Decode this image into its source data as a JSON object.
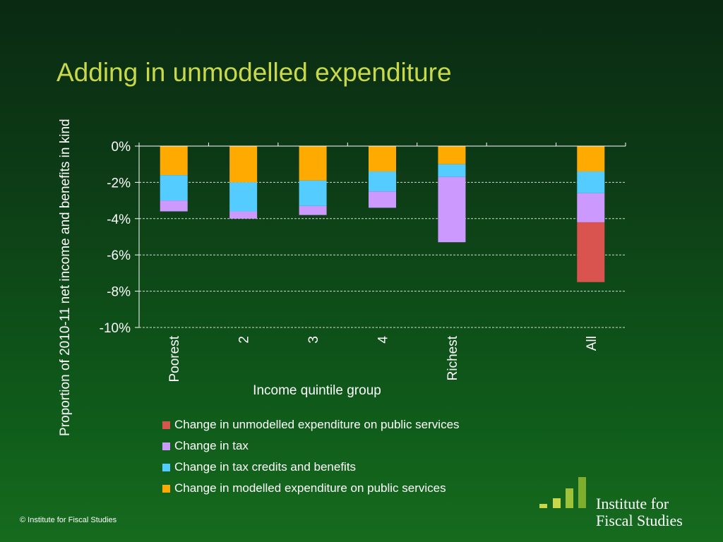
{
  "title": "Adding in unmodelled expenditure",
  "footer": "© Institute for Fiscal Studies",
  "logo": {
    "line1": "Institute for",
    "line2": "Fiscal Studies"
  },
  "colors": {
    "unmodelled": "#d9534f",
    "tax": "#cc99ff",
    "credits": "#55ccff",
    "modelled": "#ffaa00",
    "title": "#c8d84a"
  },
  "chart_data": {
    "type": "bar",
    "stacked": true,
    "xlabel": "Income quintile group",
    "ylabel": "Proportion of 2010-11 net income and benefits in kind",
    "ylim": [
      -10,
      0
    ],
    "yticks": [
      0,
      -2,
      -4,
      -6,
      -8,
      -10
    ],
    "ytick_labels": [
      "0%",
      "-2%",
      "-4%",
      "-6%",
      "-8%",
      "-10%"
    ],
    "grid": true,
    "categories": [
      "Poorest",
      "2",
      "3",
      "4",
      "Richest",
      "",
      "All"
    ],
    "series": [
      {
        "name": "Change in modelled expenditure on public services",
        "color": "#ffaa00",
        "values": [
          -1.6,
          -2.0,
          -1.9,
          -1.4,
          -1.0,
          null,
          -1.4
        ]
      },
      {
        "name": "Change in tax credits and benefits",
        "color": "#55ccff",
        "values": [
          -1.4,
          -1.6,
          -1.4,
          -1.1,
          -0.7,
          null,
          -1.2
        ]
      },
      {
        "name": "Change in tax",
        "color": "#cc99ff",
        "values": [
          -0.6,
          -0.4,
          -0.5,
          -0.9,
          -3.6,
          null,
          -1.6
        ]
      },
      {
        "name": "Change in unmodelled expenditure on public services",
        "color": "#d9534f",
        "values": [
          0,
          0,
          0,
          0,
          0,
          null,
          -3.3
        ]
      }
    ],
    "legend": [
      "Change in unmodelled expenditure on public services",
      "Change in tax",
      "Change in tax credits and benefits",
      "Change in modelled expenditure on public services"
    ]
  }
}
